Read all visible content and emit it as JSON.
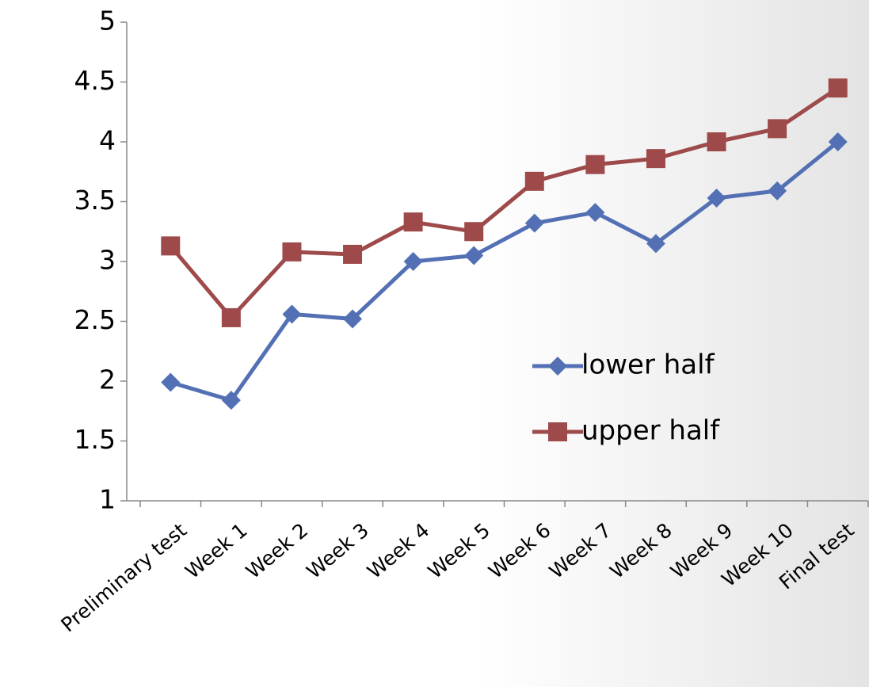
{
  "chart_data": {
    "type": "line",
    "categories": [
      "Preliminary test",
      "Week 1",
      "Week 2",
      "Week 3",
      "Week 4",
      "Week 5",
      "Week 6",
      "Week 7",
      "Week 8",
      "Week 9",
      "Week 10",
      "Final test"
    ],
    "series": [
      {
        "name": "lower half",
        "color": "#5470b5",
        "marker": "diamond",
        "values": [
          1.99,
          1.84,
          2.56,
          2.52,
          3.0,
          3.05,
          3.32,
          3.41,
          3.15,
          3.53,
          3.59,
          4.0
        ]
      },
      {
        "name": "upper half",
        "color": "#9e4a4a",
        "marker": "square",
        "values": [
          3.13,
          2.53,
          3.08,
          3.06,
          3.33,
          3.25,
          3.67,
          3.81,
          3.86,
          4.0,
          4.11,
          4.45
        ]
      }
    ],
    "ylim": [
      1,
      5
    ],
    "yticks": [
      1,
      1.5,
      2,
      2.5,
      3,
      3.5,
      4,
      4.5,
      5
    ],
    "grid": false
  }
}
